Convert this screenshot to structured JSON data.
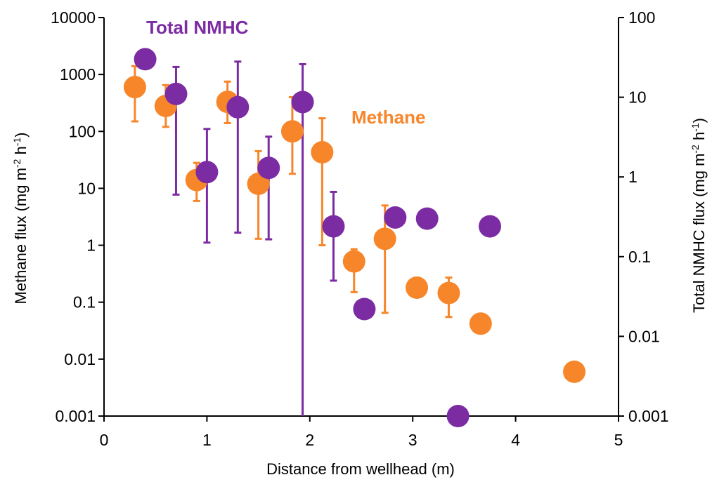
{
  "chart_data": {
    "type": "scatter",
    "title": "",
    "xlabel": "Distance from wellhead (m)",
    "ylabel_left": {
      "main": "Methane flux (mg m",
      "sup1": "-2",
      "mid": " h",
      "sup2": "-1",
      "end": ")"
    },
    "ylabel_right": {
      "main": "Total NMHC flux (mg m",
      "sup1": "-2",
      "mid": " h",
      "sup2": "-1",
      "end": ")"
    },
    "xlim": [
      0,
      5
    ],
    "x_ticks": [
      0,
      1,
      2,
      3,
      4,
      5
    ],
    "x_tick_labels": [
      "0",
      "1",
      "2",
      "3",
      "4",
      "5"
    ],
    "y_left_scale": "log",
    "y_left_lim": [
      0.001,
      10000
    ],
    "y_left_ticks": [
      0.001,
      0.01,
      0.1,
      1,
      10,
      100,
      1000,
      10000
    ],
    "y_left_tick_labels": [
      "0.001",
      "0.01",
      "0.1",
      "1",
      "10",
      "100",
      "1000",
      "10000"
    ],
    "y_right_scale": "log",
    "y_right_lim": [
      0.001,
      100
    ],
    "y_right_ticks": [
      0.001,
      0.01,
      0.1,
      1,
      10,
      100
    ],
    "y_right_tick_labels": [
      "0.001",
      "0.01",
      "0.1",
      "1",
      "10",
      "100"
    ],
    "grid": false,
    "legend": "none",
    "series": [
      {
        "name": "Methane",
        "axis": "left",
        "color": "#F7862A",
        "points": [
          {
            "x": 0.3,
            "y": 600,
            "err_low": 150,
            "err_high": 1400
          },
          {
            "x": 0.6,
            "y": 280,
            "err_low": 120,
            "err_high": 650
          },
          {
            "x": 0.9,
            "y": 14,
            "err_low": 6,
            "err_high": 28
          },
          {
            "x": 1.2,
            "y": 330,
            "err_low": 140,
            "err_high": 750
          },
          {
            "x": 1.5,
            "y": 12,
            "err_low": 1.3,
            "err_high": 45
          },
          {
            "x": 1.83,
            "y": 100,
            "err_low": 18,
            "err_high": 400
          },
          {
            "x": 2.12,
            "y": 43,
            "err_low": 1,
            "err_high": 170
          },
          {
            "x": 2.43,
            "y": 0.52,
            "err_low": 0.15,
            "err_high": 0.85
          },
          {
            "x": 2.73,
            "y": 1.3,
            "err_low": 0.065,
            "err_high": 5
          },
          {
            "x": 3.04,
            "y": 0.18
          },
          {
            "x": 3.35,
            "y": 0.145,
            "err_low": 0.055,
            "err_high": 0.27
          },
          {
            "x": 3.66,
            "y": 0.042
          },
          {
            "x": 4.57,
            "y": 0.006
          }
        ]
      },
      {
        "name": "Total NMHC",
        "axis": "right",
        "color": "#7B2CA3",
        "points": [
          {
            "x": 0.4,
            "y": 30
          },
          {
            "x": 0.7,
            "y": 11,
            "err_low": 0.6,
            "err_high": 24
          },
          {
            "x": 1.0,
            "y": 1.15,
            "err_low": 0.15,
            "err_high": 4
          },
          {
            "x": 1.3,
            "y": 7.5,
            "err_low": 0.2,
            "err_high": 28
          },
          {
            "x": 1.6,
            "y": 1.3,
            "err_low": 0.165,
            "err_high": 3.2
          },
          {
            "x": 1.93,
            "y": 8.7,
            "err_low": 0.0001,
            "err_high": 26
          },
          {
            "x": 2.23,
            "y": 0.24,
            "err_low": 0.05,
            "err_high": 0.65
          },
          {
            "x": 2.53,
            "y": 0.022
          },
          {
            "x": 2.83,
            "y": 0.31
          },
          {
            "x": 3.14,
            "y": 0.3
          },
          {
            "x": 3.44,
            "y": 0.001
          },
          {
            "x": 3.75,
            "y": 0.24
          }
        ]
      }
    ],
    "annotations": [
      {
        "text": "Total NMHC",
        "series": "Total NMHC"
      },
      {
        "text": "Methane",
        "series": "Methane"
      }
    ]
  }
}
